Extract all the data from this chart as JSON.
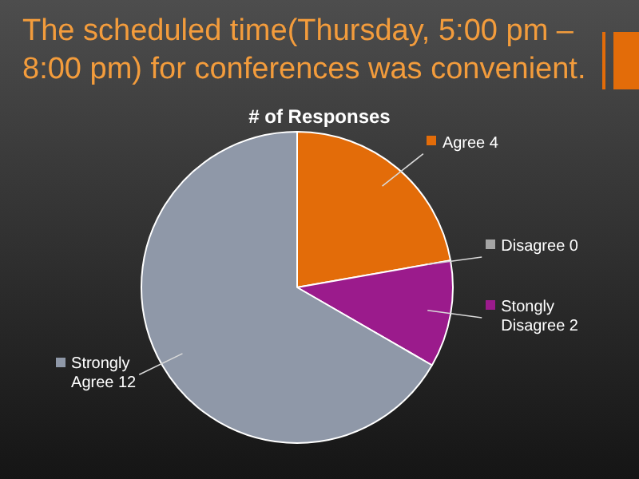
{
  "chart_data": {
    "type": "pie",
    "title": "The scheduled time(Thursday, 5:00 pm – 8:00 pm) for conferences was convenient.",
    "subtitle": "# of Responses",
    "categories": [
      "Agree 4",
      "Disagree 0",
      "Stongly Disagree 2",
      "Strongly Agree 12"
    ],
    "values": [
      4,
      0,
      2,
      12
    ],
    "colors": [
      "#e36c09",
      "#a5a5a5",
      "#9b1b8c",
      "#8f98a8"
    ],
    "legend": "right"
  }
}
